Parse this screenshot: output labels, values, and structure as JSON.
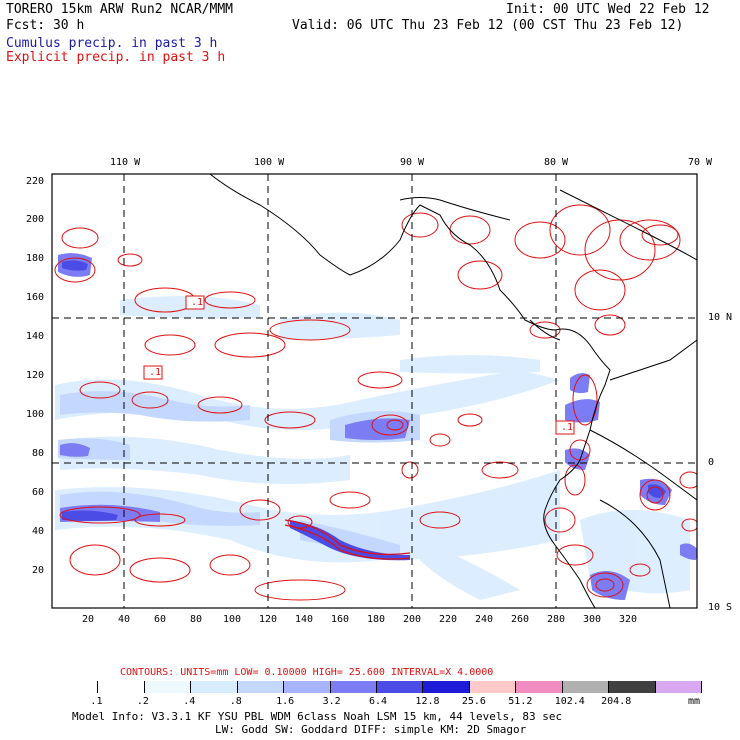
{
  "header": {
    "line1_left": "TORERO  15km ARW   Run2    NCAR/MMM",
    "line1_right": "Init: 00 UTC Wed 22 Feb 12",
    "line2_left": "Fcst:   30 h",
    "line2_right": "Valid: 06 UTC Thu 23 Feb 12 (00 CST Thu 23 Feb 12)",
    "cumulus": "Cumulus precip. in past 3 h",
    "explicit": "Explicit precip. in past 3 h"
  },
  "map": {
    "lon_labels": [
      "110 W",
      "100 W",
      "90 W",
      "80 W",
      "70 W"
    ],
    "lat_labels": [
      "10 N",
      "0",
      "10 S"
    ],
    "y_ticks": [
      "220",
      "200",
      "180",
      "160",
      "140",
      "120",
      "100",
      "80",
      "60",
      "40",
      "20"
    ],
    "x_ticks": [
      "20",
      "40",
      "60",
      "80",
      "100",
      "120",
      "140",
      "160",
      "180",
      "200",
      "220",
      "240",
      "260",
      "280",
      "300",
      "320"
    ],
    "contour_labels": [
      ".1",
      ".1",
      ".1"
    ],
    "colors": {
      "cumulus": "#3333cc",
      "explicit": "#dd0000",
      "grid": "#000000"
    }
  },
  "footer": {
    "contours": "CONTOURS:  UNITS=mm  LOW= 0.10000     HIGH=  25.600     INTERVAL=X  4.0000",
    "colorbar_labels": [
      ".1",
      ".2",
      ".4",
      ".8",
      "1.6",
      "3.2",
      "6.4",
      "12.8",
      "25.6",
      "51.2",
      "102.4",
      "204.8"
    ],
    "colorbar_colors": [
      "#ffffff",
      "#ffffff",
      "#eef8ff",
      "#d8ecff",
      "#c4d8ff",
      "#a8b4ff",
      "#7c7cf4",
      "#4b4be6",
      "#1b1bd8",
      "#ffc9c9",
      "#f08cc0",
      "#b0b0b0",
      "#404040",
      "#d8a8f0"
    ],
    "units": "mm",
    "model_info_1": "Model Info: V3.3.1   KF     YSU PBL  WDM 6class  Noah LSM  15 km,    44 levels,    83 sec",
    "model_info_2": "LW: Godd SW: Goddard DIFF: simple KM: 2D Smagor"
  }
}
